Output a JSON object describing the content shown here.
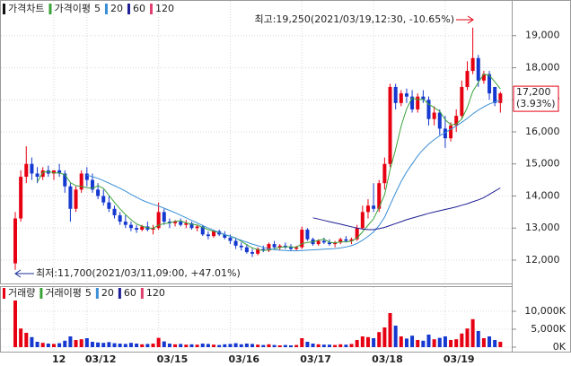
{
  "chart_data": [
    {
      "type": "candlestick",
      "title": "가격차트",
      "legend_label": "가격이평",
      "up_color": "#e60012",
      "down_color": "#1538d0",
      "categories": [
        null,
        null,
        null,
        null,
        null,
        null,
        null,
        "12",
        null,
        null,
        null,
        null,
        null,
        "03/12",
        null,
        null,
        null,
        null,
        null,
        null,
        null,
        null,
        null,
        null,
        null,
        null,
        "03/15",
        null,
        null,
        null,
        null,
        null,
        null,
        null,
        null,
        null,
        null,
        null,
        null,
        "03/16",
        null,
        null,
        null,
        null,
        null,
        null,
        null,
        null,
        null,
        null,
        null,
        null,
        "03/17",
        null,
        null,
        null,
        null,
        null,
        null,
        null,
        null,
        null,
        null,
        null,
        null,
        "03/18",
        null,
        null,
        null,
        null,
        null,
        null,
        null,
        null,
        null,
        null,
        null,
        null,
        "03/19",
        null,
        null,
        null,
        null,
        null,
        null,
        null,
        null,
        null,
        null
      ],
      "ohlc": [
        [
          11900,
          13500,
          11700,
          13300
        ],
        [
          13300,
          14800,
          13200,
          14600
        ],
        [
          14600,
          15550,
          14400,
          15000
        ],
        [
          15000,
          15200,
          14500,
          14700
        ],
        [
          14700,
          14900,
          14400,
          14600
        ],
        [
          14600,
          14900,
          14500,
          14800
        ],
        [
          14800,
          14950,
          14600,
          14700
        ],
        [
          14700,
          14800,
          14500,
          14800
        ],
        [
          14800,
          15000,
          14600,
          14700
        ],
        [
          14700,
          14800,
          14100,
          14300
        ],
        [
          14300,
          14400,
          13200,
          13600
        ],
        [
          13600,
          14300,
          13500,
          14200
        ],
        [
          14200,
          14800,
          14100,
          14700
        ],
        [
          14700,
          14900,
          14300,
          14500
        ],
        [
          14500,
          14700,
          14100,
          14200
        ],
        [
          14200,
          14400,
          13900,
          14000
        ],
        [
          14000,
          14200,
          13700,
          13800
        ],
        [
          13800,
          14000,
          13500,
          13600
        ],
        [
          13600,
          13700,
          13300,
          13400
        ],
        [
          13400,
          13500,
          13100,
          13200
        ],
        [
          13200,
          13400,
          13000,
          13100
        ],
        [
          13100,
          13200,
          12900,
          13000
        ],
        [
          13000,
          13100,
          12850,
          12950
        ],
        [
          12950,
          13100,
          12900,
          13050
        ],
        [
          13050,
          13200,
          12900,
          12950
        ],
        [
          12950,
          13100,
          12800,
          13000
        ],
        [
          13000,
          13800,
          12950,
          13500
        ],
        [
          13500,
          13600,
          13100,
          13200
        ],
        [
          13200,
          13300,
          13000,
          13150
        ],
        [
          13150,
          13250,
          13050,
          13200
        ],
        [
          13200,
          13300,
          13050,
          13100
        ],
        [
          13100,
          13250,
          13000,
          13150
        ],
        [
          13150,
          13200,
          12950,
          13000
        ],
        [
          13000,
          13100,
          12900,
          13050
        ],
        [
          13050,
          13100,
          12750,
          12800
        ],
        [
          12800,
          12900,
          12650,
          12750
        ],
        [
          12750,
          12950,
          12700,
          12900
        ],
        [
          12900,
          12950,
          12750,
          12800
        ],
        [
          12800,
          12900,
          12650,
          12700
        ],
        [
          12700,
          12800,
          12500,
          12600
        ],
        [
          12600,
          12700,
          12350,
          12450
        ],
        [
          12450,
          12550,
          12300,
          12400
        ],
        [
          12400,
          12500,
          12200,
          12250
        ],
        [
          12250,
          12350,
          12100,
          12200
        ],
        [
          12200,
          12400,
          12150,
          12350
        ],
        [
          12350,
          12450,
          12250,
          12300
        ],
        [
          12300,
          12550,
          12250,
          12500
        ],
        [
          12500,
          12600,
          12350,
          12400
        ],
        [
          12400,
          12500,
          12300,
          12450
        ],
        [
          12450,
          12550,
          12350,
          12400
        ],
        [
          12400,
          12500,
          12300,
          12350
        ],
        [
          12350,
          12450,
          12300,
          12400
        ],
        [
          12400,
          13050,
          12350,
          12950
        ],
        [
          12950,
          13000,
          12600,
          12650
        ],
        [
          12650,
          12700,
          12450,
          12500
        ],
        [
          12500,
          12650,
          12450,
          12600
        ],
        [
          12600,
          12700,
          12500,
          12550
        ],
        [
          12550,
          12650,
          12450,
          12500
        ],
        [
          12500,
          12600,
          12400,
          12550
        ],
        [
          12550,
          12700,
          12500,
          12650
        ],
        [
          12650,
          12750,
          12550,
          12600
        ],
        [
          12600,
          12700,
          12500,
          12650
        ],
        [
          12650,
          13100,
          12600,
          13000
        ],
        [
          13000,
          13700,
          12950,
          13500
        ],
        [
          13500,
          13900,
          13300,
          13700
        ],
        [
          13700,
          14400,
          13500,
          13600
        ],
        [
          13600,
          14500,
          13500,
          14400
        ],
        [
          14400,
          15200,
          14200,
          15000
        ],
        [
          15000,
          17500,
          14900,
          17400
        ],
        [
          17400,
          17500,
          16700,
          16900
        ],
        [
          16900,
          17300,
          16800,
          17200
        ],
        [
          17200,
          17350,
          16900,
          17100
        ],
        [
          17100,
          17300,
          16600,
          16700
        ],
        [
          16700,
          17200,
          16600,
          17100
        ],
        [
          17100,
          17300,
          16900,
          17000
        ],
        [
          17000,
          17100,
          16200,
          16400
        ],
        [
          16400,
          16800,
          16200,
          16600
        ],
        [
          16600,
          16700,
          15900,
          16100
        ],
        [
          16100,
          16500,
          15500,
          15800
        ],
        [
          15800,
          16300,
          15700,
          16200
        ],
        [
          16200,
          16700,
          16000,
          16500
        ],
        [
          16500,
          17600,
          16400,
          17400
        ],
        [
          17400,
          18200,
          17300,
          17900
        ],
        [
          17900,
          19250,
          17800,
          18300
        ],
        [
          18300,
          18400,
          17400,
          17600
        ],
        [
          17600,
          17900,
          17500,
          17800
        ],
        [
          17800,
          17900,
          17000,
          17200
        ],
        [
          17400,
          17400,
          16800,
          16900
        ],
        [
          16900,
          17250,
          16600,
          17200
        ]
      ],
      "series": [
        {
          "name": "5",
          "color": "#3aa33a",
          "values": [
            null,
            null,
            null,
            null,
            14440,
            14740,
            14760,
            14720,
            14720,
            14660,
            14420,
            14320,
            14300,
            14260,
            14240,
            14320,
            14240,
            14020,
            13800,
            13600,
            13420,
            13260,
            13130,
            13060,
            13010,
            12990,
            13090,
            13140,
            13160,
            13210,
            13230,
            13160,
            13120,
            13100,
            13020,
            12950,
            12900,
            12860,
            12790,
            12750,
            12690,
            12590,
            12480,
            12380,
            12330,
            12300,
            12320,
            12350,
            12400,
            12410,
            12420,
            12400,
            12510,
            12550,
            12570,
            12620,
            12650,
            12560,
            12540,
            12570,
            12570,
            12590,
            12690,
            12880,
            13090,
            13290,
            13640,
            14040,
            14820,
            15460,
            16180,
            16720,
            17060,
            17000,
            17020,
            16860,
            16760,
            16640,
            16380,
            16220,
            16240,
            16400,
            16760,
            17260,
            17540,
            17800,
            17760,
            17560,
            17340
          ]
        },
        {
          "name": "20",
          "color": "#3b8fd6",
          "values": [
            null,
            null,
            null,
            null,
            null,
            null,
            null,
            null,
            null,
            null,
            null,
            null,
            null,
            14650,
            14600,
            14550,
            14480,
            14400,
            14320,
            14240,
            14150,
            14050,
            13960,
            13870,
            13800,
            13740,
            13690,
            13620,
            13550,
            13480,
            13400,
            13320,
            13240,
            13160,
            13080,
            13000,
            12930,
            12860,
            12800,
            12740,
            12680,
            12620,
            12560,
            12500,
            12450,
            12400,
            12360,
            12330,
            12310,
            12300,
            12290,
            12290,
            12300,
            12310,
            12320,
            12330,
            12340,
            12350,
            12360,
            12380,
            12410,
            12450,
            12520,
            12620,
            12740,
            12880,
            13080,
            13340,
            13720,
            14100,
            14450,
            14750,
            15000,
            15250,
            15450,
            15620,
            15760,
            15880,
            15980,
            16080,
            16180,
            16300,
            16420,
            16560,
            16680,
            16780,
            16870,
            16930,
            16980
          ]
        },
        {
          "name": "60",
          "color": "#1e1e96",
          "values": [
            null,
            null,
            null,
            null,
            null,
            null,
            null,
            null,
            null,
            null,
            null,
            null,
            null,
            null,
            null,
            null,
            null,
            null,
            null,
            null,
            null,
            null,
            null,
            null,
            null,
            null,
            null,
            null,
            null,
            null,
            null,
            null,
            null,
            null,
            null,
            null,
            null,
            null,
            null,
            null,
            null,
            null,
            null,
            null,
            null,
            null,
            null,
            null,
            null,
            null,
            null,
            null,
            null,
            null,
            13320,
            13280,
            13240,
            13200,
            13160,
            13120,
            13080,
            13040,
            13000,
            12970,
            12950,
            12950,
            12980,
            13020,
            13080,
            13140,
            13200,
            13260,
            13310,
            13360,
            13410,
            13460,
            13500,
            13540,
            13580,
            13620,
            13660,
            13710,
            13760,
            13820,
            13880,
            13950,
            14050,
            14150,
            14250
          ]
        },
        {
          "name": "120",
          "color": "#e04070",
          "values": [
            null,
            null,
            null,
            null,
            null,
            null,
            null,
            null,
            null,
            null,
            null,
            null,
            null,
            null,
            null,
            null,
            null,
            null,
            null,
            null,
            null,
            null,
            null,
            null,
            null,
            null,
            null,
            null,
            null,
            null,
            null,
            null,
            null,
            null,
            null,
            null,
            null,
            null,
            null,
            null,
            null,
            null,
            null,
            null,
            null,
            null,
            null,
            null,
            null,
            null,
            null,
            null,
            null,
            null,
            null,
            null,
            null,
            null,
            null,
            null,
            null,
            null,
            null,
            null,
            null,
            null,
            null,
            null,
            null,
            null,
            null,
            null,
            null,
            null,
            null,
            null,
            null,
            null,
            null,
            null,
            null,
            null,
            null,
            null,
            null,
            null,
            null,
            null,
            null
          ]
        }
      ],
      "ylim": [
        11300,
        20000
      ],
      "yticks": [
        {
          "value": 12000,
          "label": "12,000"
        },
        {
          "value": 13000,
          "label": "13,000"
        },
        {
          "value": 14000,
          "label": "14,000"
        },
        {
          "value": 15000,
          "label": "15,000"
        },
        {
          "value": 16000,
          "label": "16,000"
        },
        {
          "value": 17000,
          "label": "17,000"
        },
        {
          "value": 18000,
          "label": "18,000"
        },
        {
          "value": 19000,
          "label": "19,000"
        }
      ],
      "grid": true,
      "annotations": [
        {
          "text": "최고:19,250(2021/03/19,12:30, -10.65%)",
          "color": "#e60012"
        },
        {
          "text": "최저:11,700(2021/03/11,09:00, +47.01%)",
          "color": "#1a2f9a"
        }
      ],
      "last_price_label": "17,200",
      "last_change_label": "(3.93%)"
    },
    {
      "type": "bar",
      "title": "거래량",
      "legend_label": "거래이평",
      "legend": [
        {
          "name": "5",
          "color": "#3aa33a"
        },
        {
          "name": "20",
          "color": "#3b8fd6"
        },
        {
          "name": "60",
          "color": "#1e1e96"
        },
        {
          "name": "120",
          "color": "#e04070"
        }
      ],
      "values": [
        13000,
        5200,
        4000,
        2800,
        1500,
        1200,
        1000,
        900,
        1100,
        1800,
        3000,
        2000,
        2200,
        2500,
        1500,
        1300,
        1200,
        1400,
        1100,
        1000,
        900,
        1200,
        1000,
        800,
        900,
        1000,
        2600,
        1600,
        1000,
        800,
        900,
        700,
        800,
        700,
        1000,
        900,
        700,
        600,
        800,
        900,
        1100,
        800,
        1000,
        900,
        700,
        600,
        800,
        600,
        500,
        600,
        500,
        600,
        2500,
        1500,
        1000,
        800,
        700,
        700,
        600,
        800,
        700,
        900,
        2000,
        3000,
        2800,
        2500,
        4200,
        5500,
        9500,
        6000,
        3000,
        2400,
        3200,
        2000,
        1800,
        3500,
        2200,
        2600,
        3000,
        2000,
        2200,
        3800,
        5200,
        7800,
        4500,
        2500,
        3000,
        2000,
        1500
      ],
      "ylim": [
        0,
        16000
      ],
      "yticks": [
        {
          "value": 0,
          "label": "0K"
        },
        {
          "value": 5000,
          "label": "5,000K"
        },
        {
          "value": 10000,
          "label": "10,000K"
        }
      ],
      "grid": true
    }
  ]
}
